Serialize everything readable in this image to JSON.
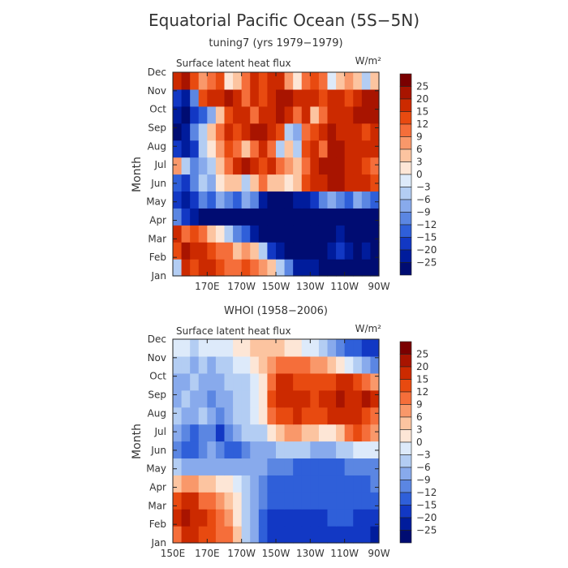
{
  "figure": {
    "title": "Equatorial Pacific Ocean (5S−5N)"
  },
  "colorbar": {
    "levels": [
      "25",
      "20",
      "15",
      "12",
      "9",
      "6",
      "3",
      "0",
      "−3",
      "−6",
      "−9",
      "−12",
      "−15",
      "−20",
      "−25"
    ],
    "colors": [
      "#7a0000",
      "#a81400",
      "#cc2a00",
      "#e84a10",
      "#f56e3a",
      "#f9986a",
      "#fcc4a0",
      "#fde6d6",
      "#ddeafa",
      "#b3cdf3",
      "#88aaec",
      "#5b86e2",
      "#2f5fd9",
      "#1238c4",
      "#001c9c",
      "#000c72"
    ]
  },
  "chart_data": [
    {
      "type": "heatmap",
      "title": "tuning7 (yrs 1979−1979)",
      "subtitle": "Surface latent heat flux",
      "units": "W/m²",
      "ylabel": "Month",
      "months": [
        "Jan",
        "Feb",
        "Mar",
        "Apr",
        "May",
        "Jun",
        "Jul",
        "Aug",
        "Sep",
        "Oct",
        "Nov",
        "Dec"
      ],
      "xticks": [
        "170E",
        "170W",
        "150W",
        "130W",
        "110W",
        "90W"
      ],
      "xrange": [
        150,
        270
      ],
      "grid": [
        [
          -4,
          18,
          14,
          20,
          16,
          14,
          12,
          10,
          14,
          10,
          8,
          4,
          -4,
          -10,
          -20,
          -20,
          -20,
          -25,
          -25,
          -25,
          -25,
          -25,
          -25,
          -25
        ],
        [
          14,
          22,
          16,
          18,
          14,
          12,
          10,
          6,
          8,
          4,
          -4,
          -15,
          -20,
          -25,
          -25,
          -25,
          -25,
          -25,
          -20,
          -15,
          -20,
          -25,
          -20,
          -25
        ],
        [
          20,
          10,
          14,
          10,
          6,
          2,
          -4,
          -10,
          -14,
          -20,
          -25,
          -25,
          -25,
          -25,
          -25,
          -25,
          -25,
          -25,
          -25,
          -20,
          -25,
          -25,
          -25,
          -25
        ],
        [
          -10,
          -15,
          -20,
          -25,
          -25,
          -25,
          -25,
          -25,
          -25,
          -25,
          -25,
          -25,
          -25,
          -25,
          -25,
          -25,
          -25,
          -25,
          -25,
          -25,
          -25,
          -25,
          -25,
          -25
        ],
        [
          -15,
          -20,
          -15,
          -10,
          -12,
          -8,
          -10,
          -12,
          -8,
          -10,
          -20,
          -25,
          -25,
          -25,
          -20,
          -20,
          -15,
          -10,
          -8,
          -10,
          -12,
          -8,
          -10,
          -12
        ],
        [
          -12,
          -15,
          -10,
          -5,
          -8,
          2,
          4,
          6,
          -3,
          4,
          12,
          6,
          4,
          2,
          4,
          14,
          20,
          18,
          22,
          25,
          20,
          18,
          16,
          14
        ],
        [
          8,
          -4,
          -10,
          -6,
          -5,
          4,
          12,
          20,
          22,
          18,
          14,
          16,
          10,
          8,
          6,
          12,
          18,
          25,
          25,
          22,
          20,
          18,
          14,
          10
        ],
        [
          -15,
          -20,
          -15,
          -5,
          3,
          8,
          14,
          10,
          6,
          12,
          20,
          12,
          -3,
          4,
          -5,
          15,
          18,
          12,
          22,
          25,
          18,
          16,
          20,
          18
        ],
        [
          -25,
          -20,
          -10,
          -3,
          4,
          10,
          18,
          14,
          20,
          22,
          25,
          20,
          15,
          -3,
          -8,
          10,
          14,
          20,
          22,
          16,
          18,
          20,
          15,
          18
        ],
        [
          -20,
          -25,
          -15,
          -12,
          -8,
          6,
          14,
          20,
          18,
          12,
          16,
          20,
          22,
          18,
          12,
          16,
          6,
          10,
          16,
          20,
          18,
          22,
          25,
          25
        ],
        [
          -15,
          -20,
          -10,
          14,
          18,
          20,
          22,
          16,
          12,
          18,
          14,
          20,
          25,
          22,
          18,
          20,
          16,
          14,
          18,
          16,
          15,
          20,
          25,
          22
        ],
        [
          18,
          22,
          15,
          8,
          12,
          14,
          3,
          6,
          12,
          18,
          14,
          20,
          16,
          8,
          3,
          12,
          14,
          10,
          0,
          6,
          8,
          4,
          -3,
          4
        ]
      ]
    },
    {
      "type": "heatmap",
      "title": "WHOI (1958−2006)",
      "subtitle": "Surface latent heat flux",
      "units": "W/m²",
      "ylabel": "Month",
      "months": [
        "Jan",
        "Feb",
        "Mar",
        "Apr",
        "May",
        "Jun",
        "Jul",
        "Aug",
        "Sep",
        "Oct",
        "Nov",
        "Dec"
      ],
      "xticks": [
        "150E",
        "170E",
        "170W",
        "150W",
        "130W",
        "110W",
        "90W"
      ],
      "xrange": [
        150,
        270
      ],
      "grid": [
        [
          12,
          20,
          18,
          15,
          14,
          12,
          10,
          4,
          -3,
          -8,
          -12,
          -15,
          -15,
          -15,
          -15,
          -15,
          -15,
          -15,
          -15,
          -15,
          -15,
          -15,
          -15,
          -20
        ],
        [
          18,
          22,
          20,
          18,
          15,
          12,
          8,
          3,
          -3,
          -8,
          -12,
          -15,
          -15,
          -15,
          -15,
          -15,
          -15,
          -15,
          -12,
          -12,
          -12,
          -15,
          -15,
          -15
        ],
        [
          15,
          18,
          16,
          12,
          10,
          8,
          4,
          1,
          -3,
          -8,
          -10,
          -12,
          -12,
          -12,
          -12,
          -12,
          -12,
          -12,
          -12,
          -12,
          -12,
          -12,
          -12,
          -12
        ],
        [
          4,
          8,
          8,
          6,
          4,
          3,
          1,
          -1,
          -3,
          -6,
          -9,
          -12,
          -12,
          -12,
          -12,
          -12,
          -12,
          -12,
          -12,
          -12,
          -12,
          -12,
          -12,
          -10
        ],
        [
          -3,
          -6,
          -6,
          -6,
          -6,
          -6,
          -6,
          -6,
          -6,
          -6,
          -6,
          -9,
          -9,
          -9,
          -12,
          -12,
          -12,
          -12,
          -12,
          -12,
          -9,
          -9,
          -9,
          -9
        ],
        [
          -9,
          -12,
          -12,
          -9,
          -6,
          -9,
          -12,
          -12,
          -9,
          -6,
          -6,
          -6,
          -3,
          -3,
          -3,
          -3,
          -6,
          -6,
          -6,
          -3,
          -3,
          -1,
          0,
          0
        ],
        [
          -6,
          -9,
          -12,
          -9,
          -9,
          -15,
          -9,
          -6,
          -3,
          -3,
          -3,
          3,
          6,
          9,
          9,
          6,
          6,
          3,
          3,
          6,
          12,
          15,
          12,
          9
        ],
        [
          -3,
          -6,
          -6,
          -3,
          -6,
          -9,
          -6,
          -3,
          -3,
          -1,
          3,
          12,
          15,
          15,
          18,
          15,
          15,
          15,
          18,
          20,
          20,
          18,
          15,
          12
        ],
        [
          -6,
          -3,
          -6,
          -6,
          -9,
          -6,
          -6,
          -3,
          -3,
          -1,
          3,
          15,
          20,
          20,
          20,
          18,
          15,
          18,
          20,
          22,
          20,
          20,
          25,
          18
        ],
        [
          -6,
          -6,
          -3,
          -6,
          -6,
          -6,
          -3,
          -3,
          -3,
          -1,
          3,
          12,
          18,
          18,
          15,
          15,
          15,
          15,
          15,
          18,
          18,
          15,
          12,
          9
        ],
        [
          -3,
          -3,
          -6,
          -3,
          -6,
          -3,
          -3,
          -1,
          -1,
          3,
          6,
          9,
          12,
          12,
          12,
          12,
          9,
          9,
          6,
          3,
          0,
          -3,
          -6,
          -9
        ],
        [
          0,
          -1,
          -3,
          -1,
          0,
          -1,
          0,
          3,
          3,
          6,
          6,
          6,
          6,
          3,
          3,
          0,
          -1,
          -3,
          -6,
          -9,
          -12,
          -12,
          -15,
          -15
        ]
      ]
    }
  ]
}
